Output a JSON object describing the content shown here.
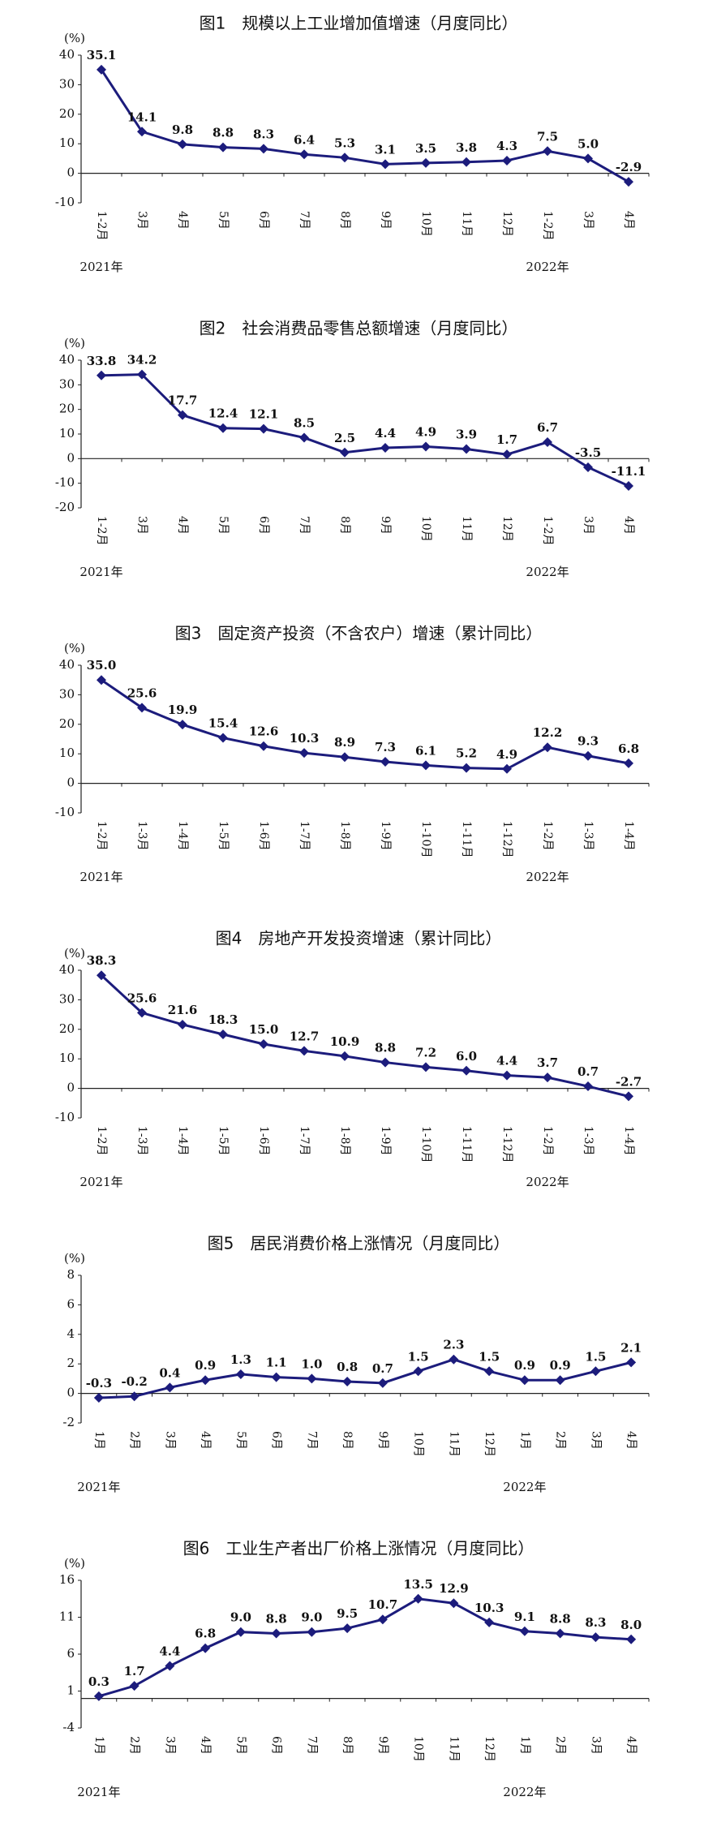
{
  "chart_data": [
    {
      "type": "line",
      "title": "图1　规模以上工业增加值增速（月度同比）",
      "y_unit": "(%)",
      "years": [
        "2021年",
        "2022年"
      ],
      "categories": [
        "1-2月",
        "3月",
        "4月",
        "5月",
        "6月",
        "7月",
        "8月",
        "9月",
        "10月",
        "11月",
        "12月",
        "1-2月",
        "3月",
        "4月"
      ],
      "values": [
        35.1,
        14.1,
        9.8,
        8.8,
        8.3,
        6.4,
        5.3,
        3.1,
        3.5,
        3.8,
        4.3,
        7.5,
        5.0,
        -2.9
      ],
      "value_labels": [
        "35.1",
        "14.1",
        "9.8",
        "8.8",
        "8.3",
        "6.4",
        "5.3",
        "3.1",
        "3.5",
        "3.8",
        "4.3",
        "7.5",
        "5.0",
        "-2.9"
      ],
      "color": "#1c1c7c",
      "ylim": [
        -10,
        40
      ],
      "yticks": [
        -10,
        0,
        10,
        20,
        30,
        40
      ]
    },
    {
      "type": "line",
      "title": "图2　社会消费品零售总额增速（月度同比）",
      "y_unit": "(%)",
      "years": [
        "2021年",
        "2022年"
      ],
      "categories": [
        "1-2月",
        "3月",
        "4月",
        "5月",
        "6月",
        "7月",
        "8月",
        "9月",
        "10月",
        "11月",
        "12月",
        "1-2月",
        "3月",
        "4月"
      ],
      "values": [
        33.8,
        34.2,
        17.7,
        12.4,
        12.1,
        8.5,
        2.5,
        4.4,
        4.9,
        3.9,
        1.7,
        6.7,
        -3.5,
        -11.1
      ],
      "value_labels": [
        "33.8",
        "34.2",
        "17.7",
        "12.4",
        "12.1",
        "8.5",
        "2.5",
        "4.4",
        "4.9",
        "3.9",
        "1.7",
        "6.7",
        "-3.5",
        "-11.1"
      ],
      "color": "#1c1c7c",
      "ylim": [
        -20,
        40
      ],
      "yticks": [
        -20,
        -10,
        0,
        10,
        20,
        30,
        40
      ]
    },
    {
      "type": "line",
      "title": "图3　固定资产投资（不含农户）增速（累计同比）",
      "y_unit": "(%)",
      "years": [
        "2021年",
        "2022年"
      ],
      "categories": [
        "1-2月",
        "1-3月",
        "1-4月",
        "1-5月",
        "1-6月",
        "1-7月",
        "1-8月",
        "1-9月",
        "1-10月",
        "1-11月",
        "1-12月",
        "1-2月",
        "1-3月",
        "1-4月"
      ],
      "values": [
        35.0,
        25.6,
        19.9,
        15.4,
        12.6,
        10.3,
        8.9,
        7.3,
        6.1,
        5.2,
        4.9,
        12.2,
        9.3,
        6.8
      ],
      "value_labels": [
        "35.0",
        "25.6",
        "19.9",
        "15.4",
        "12.6",
        "10.3",
        "8.9",
        "7.3",
        "6.1",
        "5.2",
        "4.9",
        "12.2",
        "9.3",
        "6.8"
      ],
      "color": "#1c1c7c",
      "ylim": [
        -10,
        40
      ],
      "yticks": [
        -10,
        0,
        10,
        20,
        30,
        40
      ]
    },
    {
      "type": "line",
      "title": "图4　房地产开发投资增速（累计同比）",
      "y_unit": "(%)",
      "years": [
        "2021年",
        "2022年"
      ],
      "categories": [
        "1-2月",
        "1-3月",
        "1-4月",
        "1-5月",
        "1-6月",
        "1-7月",
        "1-8月",
        "1-9月",
        "1-10月",
        "1-11月",
        "1-12月",
        "1-2月",
        "1-3月",
        "1-4月"
      ],
      "values": [
        38.3,
        25.6,
        21.6,
        18.3,
        15.0,
        12.7,
        10.9,
        8.8,
        7.2,
        6.0,
        4.4,
        3.7,
        0.7,
        -2.7
      ],
      "value_labels": [
        "38.3",
        "25.6",
        "21.6",
        "18.3",
        "15.0",
        "12.7",
        "10.9",
        "8.8",
        "7.2",
        "6.0",
        "4.4",
        "3.7",
        "0.7",
        "-2.7"
      ],
      "color": "#1c1c7c",
      "ylim": [
        -10,
        40
      ],
      "yticks": [
        -10,
        0,
        10,
        20,
        30,
        40
      ]
    },
    {
      "type": "line",
      "title": "图5　居民消费价格上涨情况（月度同比）",
      "y_unit": "(%)",
      "years": [
        "2021年",
        "2022年"
      ],
      "categories": [
        "1月",
        "2月",
        "3月",
        "4月",
        "5月",
        "6月",
        "7月",
        "8月",
        "9月",
        "10月",
        "11月",
        "12月",
        "1月",
        "2月",
        "3月",
        "4月"
      ],
      "values": [
        -0.3,
        -0.2,
        0.4,
        0.9,
        1.3,
        1.1,
        1.0,
        0.8,
        0.7,
        1.5,
        2.3,
        1.5,
        0.9,
        0.9,
        1.5,
        2.1
      ],
      "value_labels": [
        "-0.3",
        "-0.2",
        "0.4",
        "0.9",
        "1.3",
        "1.1",
        "1.0",
        "0.8",
        "0.7",
        "1.5",
        "2.3",
        "1.5",
        "0.9",
        "0.9",
        "1.5",
        "2.1"
      ],
      "color": "#1c1c7c",
      "ylim": [
        -2,
        8
      ],
      "yticks": [
        -2,
        0,
        2,
        4,
        6,
        8
      ]
    },
    {
      "type": "line",
      "title": "图6　工业生产者出厂价格上涨情况（月度同比）",
      "y_unit": "(%)",
      "years": [
        "2021年",
        "2022年"
      ],
      "categories": [
        "1月",
        "2月",
        "3月",
        "4月",
        "5月",
        "6月",
        "7月",
        "8月",
        "9月",
        "10月",
        "11月",
        "12月",
        "1月",
        "2月",
        "3月",
        "4月"
      ],
      "values": [
        0.3,
        1.7,
        4.4,
        6.8,
        9.0,
        8.8,
        9.0,
        9.5,
        10.7,
        13.5,
        12.9,
        10.3,
        9.1,
        8.8,
        8.3,
        8.0
      ],
      "value_labels": [
        "0.3",
        "1.7",
        "4.4",
        "6.8",
        "9.0",
        "8.8",
        "9.0",
        "9.5",
        "10.7",
        "13.5",
        "12.9",
        "10.3",
        "9.1",
        "8.8",
        "8.3",
        "8.0"
      ],
      "color": "#1c1c7c",
      "ylim": [
        -4,
        16
      ],
      "yticks": [
        -4,
        1,
        6,
        11,
        16
      ]
    }
  ]
}
